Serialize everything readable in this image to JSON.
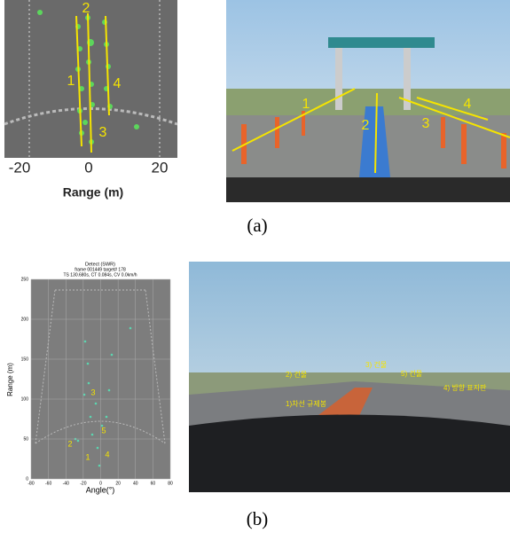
{
  "panel_a": {
    "radar_plot": {
      "x_ticks": [
        "-20",
        "0",
        "20"
      ],
      "x_label": "Range (m)",
      "lane_labels": [
        "1",
        "2",
        "3",
        "4"
      ]
    },
    "camera_image": {
      "lane_labels": [
        "1",
        "2",
        "3",
        "4"
      ]
    },
    "caption": "(a)"
  },
  "panel_b": {
    "radar_plot": {
      "title": "Detect (SWR)",
      "info_lines": [
        "frame 001449  target# 178",
        "TS 130.680s,  CT 0.084s,  CV 0.0km/h"
      ],
      "y_label": "Range (m)",
      "y_ticks": [
        "0",
        "50",
        "100",
        "150",
        "200",
        "250"
      ],
      "x_ticks": [
        "-80",
        "-60",
        "-40",
        "-20",
        "0",
        "20",
        "40",
        "60",
        "80"
      ],
      "x_label": "Angle(°)",
      "object_labels": [
        "1",
        "2",
        "3",
        "4",
        "5"
      ]
    },
    "camera_image": {
      "object_labels": [
        "1)차선 규제봉",
        "2) 건물",
        "3) 건물",
        "4) 방향 표지판",
        "5) 건물"
      ]
    },
    "caption": "(b)"
  }
}
